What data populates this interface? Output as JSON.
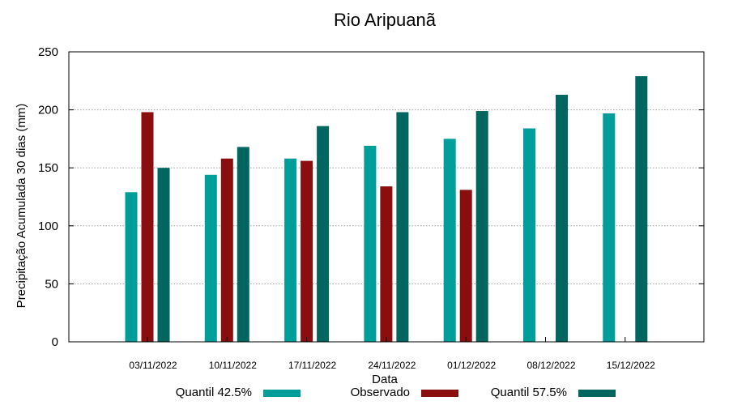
{
  "chart_data": {
    "type": "bar",
    "title": "Rio Aripuanã",
    "xlabel": "Data",
    "ylabel": "Precipitação Acumulada 30 dias (mm)",
    "ylim": [
      0,
      250
    ],
    "yticks": [
      0,
      50,
      100,
      150,
      200,
      250
    ],
    "grid": true,
    "legend_position": "bottom",
    "categories": [
      "03/11/2022",
      "10/11/2022",
      "17/11/2022",
      "24/11/2022",
      "01/12/2022",
      "08/12/2022",
      "15/12/2022"
    ],
    "series": [
      {
        "name": "Quantil 42.5%",
        "color": "#009e9a",
        "values": [
          129,
          144,
          158,
          169,
          175,
          184,
          197
        ]
      },
      {
        "name": "Observado",
        "color": "#8b0e0e",
        "values": [
          198,
          158,
          156,
          134,
          131,
          null,
          null
        ]
      },
      {
        "name": "Quantil 57.5%",
        "color": "#00665f",
        "values": [
          150,
          168,
          186,
          198,
          199,
          213,
          229
        ]
      }
    ]
  }
}
